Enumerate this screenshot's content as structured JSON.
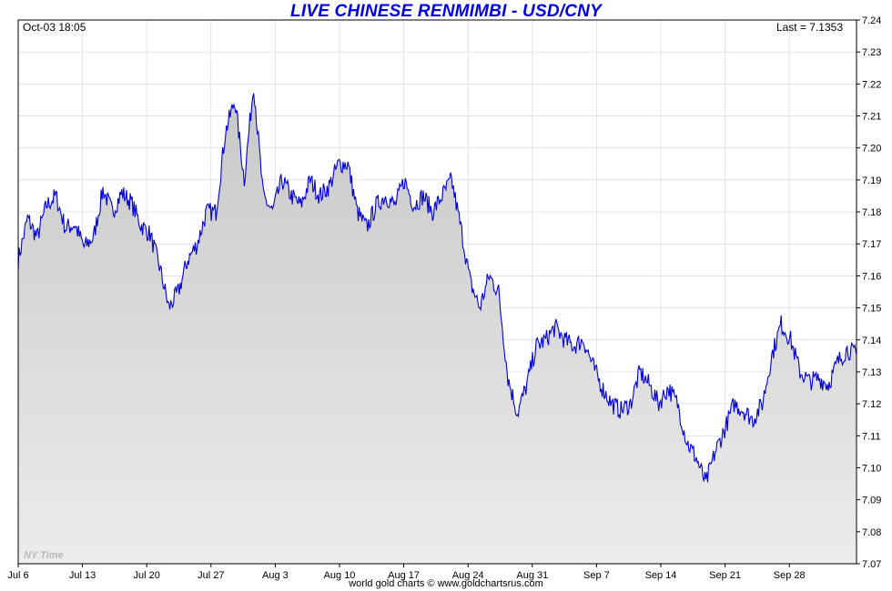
{
  "chart_data": {
    "type": "line",
    "title": "LIVE CHINESE RENMIMBI - USD/CNY",
    "timestamp": "Oct-03  18:05",
    "last_label": "Last = 7.1353",
    "timezone_label": "NY Time",
    "footer": "world gold charts © www.goldchartsrus.com",
    "ylim": [
      7.07,
      7.24
    ],
    "y_ticks": [
      "7.07",
      "7.08",
      "7.09",
      "7.10",
      "7.11",
      "7.12",
      "7.13",
      "7.14",
      "7.15",
      "7.16",
      "7.17",
      "7.18",
      "7.19",
      "7.20",
      "7.21",
      "7.22",
      "7.23",
      "7.24"
    ],
    "x_ticks": [
      "Jul 6",
      "Jul 13",
      "Jul 20",
      "Jul 27",
      "Aug 3",
      "Aug 10",
      "Aug 17",
      "Aug 24",
      "Aug 31",
      "Sep 7",
      "Sep 14",
      "Sep 21",
      "Sep 28"
    ],
    "grid": true,
    "line_color": "#0000dd",
    "fill_color": "#d4d4d4",
    "series": [
      {
        "x": [
          "Jul 6",
          "Jul 7",
          "Jul 8",
          "Jul 9",
          "Jul 10",
          "Jul 11",
          "Jul 12",
          "Jul 13",
          "Jul 14",
          "Jul 15",
          "Jul 16",
          "Jul 17",
          "Jul 18",
          "Jul 19",
          "Jul 20",
          "Jul 21",
          "Jul 22",
          "Jul 23",
          "Jul 24",
          "Jul 25",
          "Jul 26",
          "Jul 27",
          "Jul 28",
          "Jul 29",
          "Jul 30",
          "Jul 31",
          "Aug 1",
          "Aug 2",
          "Aug 3",
          "Aug 4",
          "Aug 5",
          "Aug 6",
          "Aug 7",
          "Aug 8",
          "Aug 9",
          "Aug 10",
          "Aug 11",
          "Aug 12",
          "Aug 13",
          "Aug 14",
          "Aug 15",
          "Aug 16",
          "Aug 17",
          "Aug 18",
          "Aug 19",
          "Aug 20",
          "Aug 21",
          "Aug 22",
          "Aug 23",
          "Aug 24",
          "Aug 25",
          "Aug 26",
          "Aug 27",
          "Aug 28",
          "Aug 29",
          "Aug 30",
          "Aug 31",
          "Sep 1",
          "Sep 2",
          "Sep 3",
          "Sep 4",
          "Sep 5",
          "Sep 6",
          "Sep 7",
          "Sep 8",
          "Sep 9",
          "Sep 10",
          "Sep 11",
          "Sep 12",
          "Sep 13",
          "Sep 14",
          "Sep 15",
          "Sep 16",
          "Sep 17",
          "Sep 18",
          "Sep 19",
          "Sep 20",
          "Sep 21",
          "Sep 22",
          "Sep 23",
          "Sep 24",
          "Sep 25",
          "Sep 26",
          "Sep 27",
          "Sep 28",
          "Sep 29",
          "Sep 30",
          "Oct 1",
          "Oct 2",
          "Oct 3"
        ],
        "values": [
          7.165,
          7.178,
          7.172,
          7.182,
          7.185,
          7.175,
          7.176,
          7.169,
          7.172,
          7.187,
          7.18,
          7.186,
          7.183,
          7.176,
          7.173,
          7.163,
          7.15,
          7.155,
          7.165,
          7.17,
          7.18,
          7.18,
          7.205,
          7.215,
          7.19,
          7.22,
          7.185,
          7.18,
          7.19,
          7.185,
          7.182,
          7.19,
          7.185,
          7.188,
          7.195,
          7.195,
          7.18,
          7.175,
          7.182,
          7.185,
          7.182,
          7.19,
          7.182,
          7.185,
          7.18,
          7.185,
          7.19,
          7.175,
          7.158,
          7.15,
          7.16,
          7.155,
          7.128,
          7.117,
          7.126,
          7.138,
          7.14,
          7.144,
          7.14,
          7.138,
          7.14,
          7.132,
          7.125,
          7.12,
          7.118,
          7.12,
          7.13,
          7.126,
          7.12,
          7.125,
          7.12,
          7.108,
          7.103,
          7.095,
          7.105,
          7.112,
          7.12,
          7.118,
          7.115,
          7.12,
          7.135,
          7.145,
          7.14,
          7.13,
          7.127,
          7.128,
          7.126,
          7.133,
          7.137,
          7.1353
        ]
      }
    ]
  }
}
